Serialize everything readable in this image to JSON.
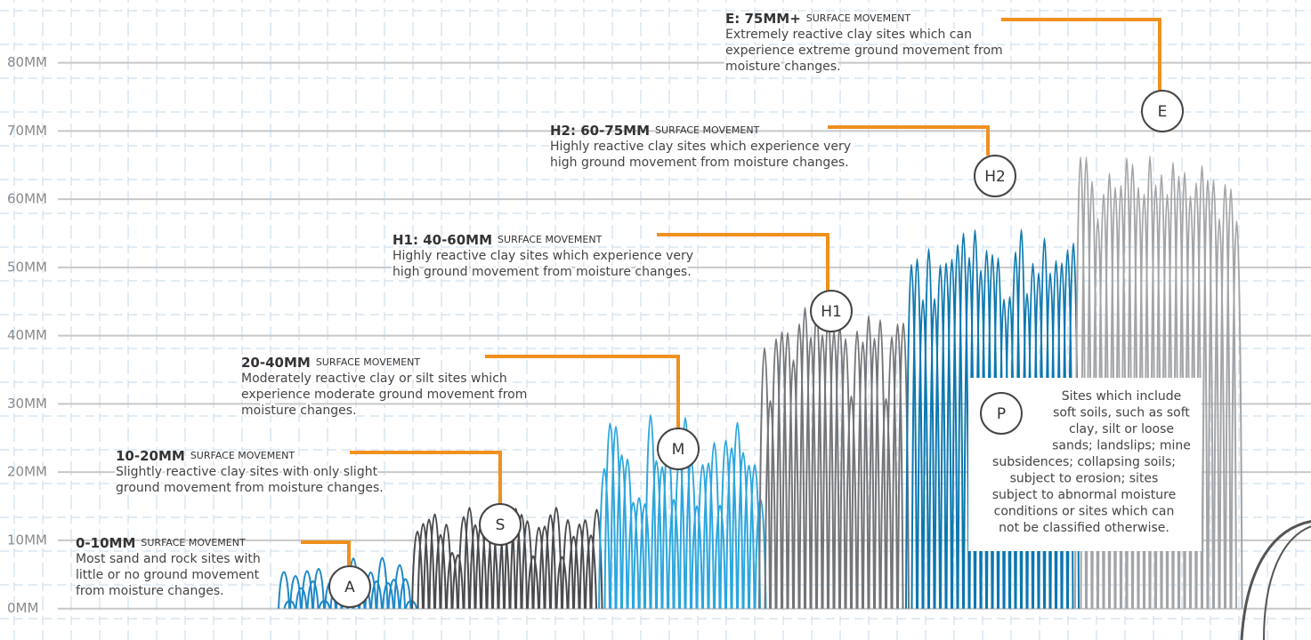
{
  "chart_data": {
    "type": "spike-bands",
    "yticks": [
      {
        "value": 0,
        "label": "0MM"
      },
      {
        "value": 10,
        "label": "10MM"
      },
      {
        "value": 20,
        "label": "20MM"
      },
      {
        "value": 30,
        "label": "30MM"
      },
      {
        "value": 40,
        "label": "40MM"
      },
      {
        "value": 50,
        "label": "50MM"
      },
      {
        "value": 60,
        "label": "60MM"
      },
      {
        "value": 70,
        "label": "70MM"
      },
      {
        "value": 80,
        "label": "80MM"
      }
    ],
    "ylim": [
      -4.6,
      89.2
    ],
    "grid": true,
    "classes": [
      {
        "name": "A",
        "range_label": "0-10MM",
        "suffix": "SURFACE MOVEMENT",
        "low": 0,
        "high": 10,
        "color": "#1e88c8",
        "description": [
          "Most sand and rock sites with",
          "little or no ground movement",
          "from moisture changes."
        ]
      },
      {
        "name": "S",
        "range_label": "10-20MM",
        "suffix": "SURFACE MOVEMENT",
        "low": 10,
        "high": 20,
        "color": "#4a4a4e",
        "description": [
          "Slightly reactive clay sites with only slight",
          "ground movement from moisture changes."
        ]
      },
      {
        "name": "M",
        "range_label": "20-40MM",
        "suffix": "SURFACE MOVEMENT",
        "low": 20,
        "high": 40,
        "color": "#2aa6df",
        "description": [
          "Moderately reactive clay or silt sites which",
          "experience moderate ground movement from",
          "moisture changes."
        ]
      },
      {
        "name": "H1",
        "range_label": "H1: 40-60MM",
        "suffix": "SURFACE MOVEMENT",
        "low": 40,
        "high": 60,
        "color": "#737478",
        "description": [
          "Highly reactive clay sites which experience very",
          "high ground movement from moisture changes."
        ]
      },
      {
        "name": "H2",
        "range_label": "H2: 60-75MM",
        "suffix": "SURFACE MOVEMENT",
        "low": 60,
        "high": 75,
        "color": "#0b77b0",
        "description": [
          "Highly reactive clay sites which experience very",
          "high ground movement from moisture changes."
        ]
      },
      {
        "name": "E",
        "range_label": "E: 75MM+",
        "suffix": "SURFACE MOVEMENT",
        "low": 75,
        "high": null,
        "color": "#a3a4a7",
        "description": [
          "Extremely reactive clay sites which can",
          "experience extreme ground movement from",
          "moisture changes."
        ]
      }
    ],
    "special": {
      "name": "P",
      "description": [
        "Sites which include",
        "soft soils, such as soft",
        "clay, silt or loose",
        "sands; landslips; mine",
        "subsidences; collapsing soils;",
        "subject to erosion; sites",
        "subject to abnormal moisture",
        "conditions or sites which can",
        "not be classified otherwise."
      ]
    }
  }
}
